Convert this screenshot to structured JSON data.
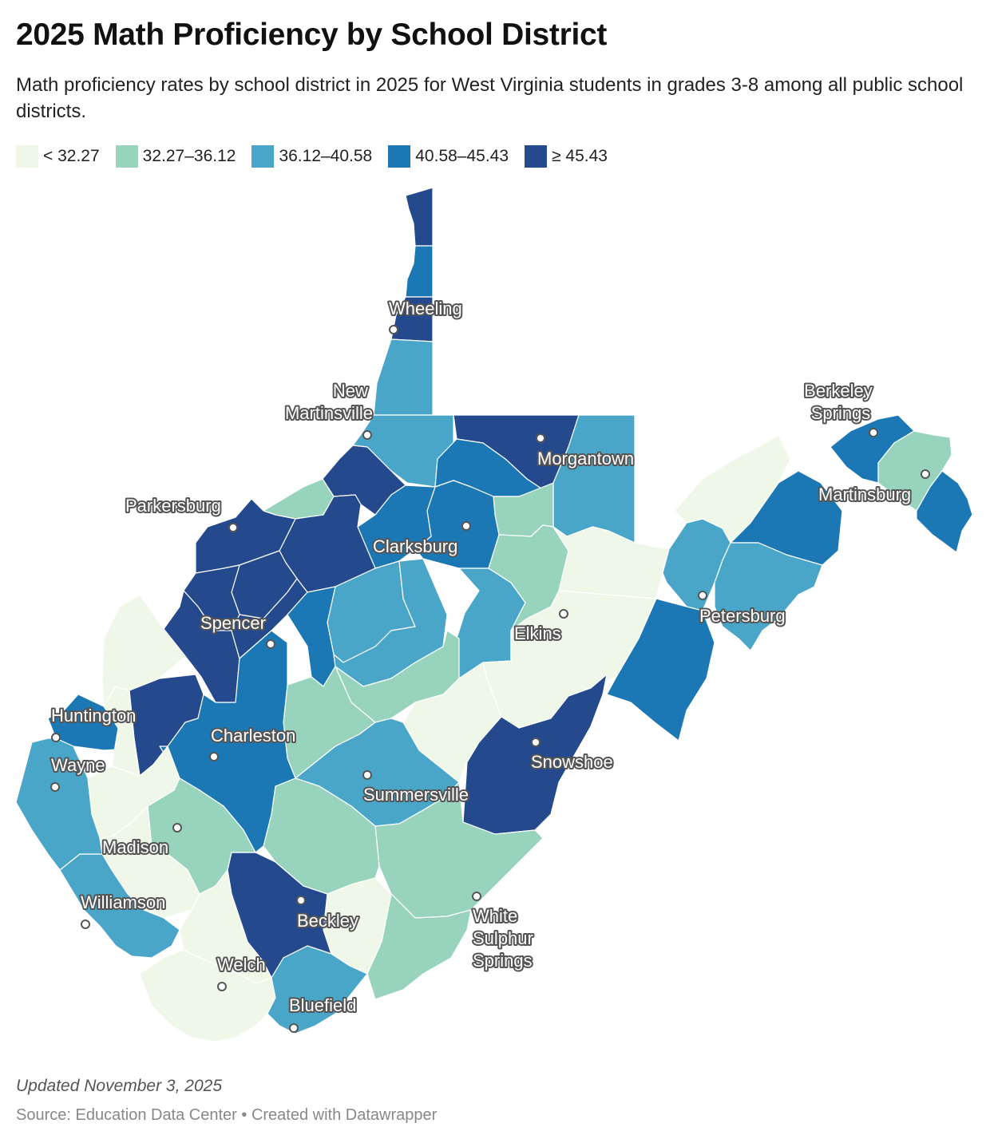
{
  "header": {
    "title": "2025 Math Proficiency by School District",
    "subtitle": "Math proficiency rates by school district in 2025 for West Virginia students in grades 3-8 among all public school districts."
  },
  "legend": {
    "items": [
      {
        "label": "< 32.27",
        "color": "#eff8e8"
      },
      {
        "label": "32.27–36.12",
        "color": "#98d4bd"
      },
      {
        "label": "36.12–40.58",
        "color": "#4aa6c9"
      },
      {
        "label": "40.58–45.43",
        "color": "#1c78b5"
      },
      {
        "label": "≥ 45.43",
        "color": "#24498d"
      }
    ]
  },
  "map": {
    "cities": [
      {
        "name": "Wheeling"
      },
      {
        "name_line1": "New",
        "name_line2": "Martinsville"
      },
      {
        "name_line1": "Berkeley",
        "name_line2": "Springs"
      },
      {
        "name": "Morgantown"
      },
      {
        "name": "Martinsburg"
      },
      {
        "name": "Parkersburg"
      },
      {
        "name": "Clarksburg"
      },
      {
        "name": "Petersburg"
      },
      {
        "name": "Elkins"
      },
      {
        "name": "Spencer"
      },
      {
        "name": "Huntington"
      },
      {
        "name": "Charleston"
      },
      {
        "name": "Wayne"
      },
      {
        "name": "Snowshoe"
      },
      {
        "name": "Summersville"
      },
      {
        "name": "Madison"
      },
      {
        "name": "Williamson"
      },
      {
        "name": "Beckley"
      },
      {
        "name_line1": "White",
        "name_line2": "Sulphur",
        "name_line3": "Springs"
      },
      {
        "name": "Welch"
      },
      {
        "name": "Bluefield"
      }
    ]
  },
  "footer": {
    "updated": "Updated November 3, 2025",
    "source": "Source: Education Data Center • Created with Datawrapper"
  }
}
